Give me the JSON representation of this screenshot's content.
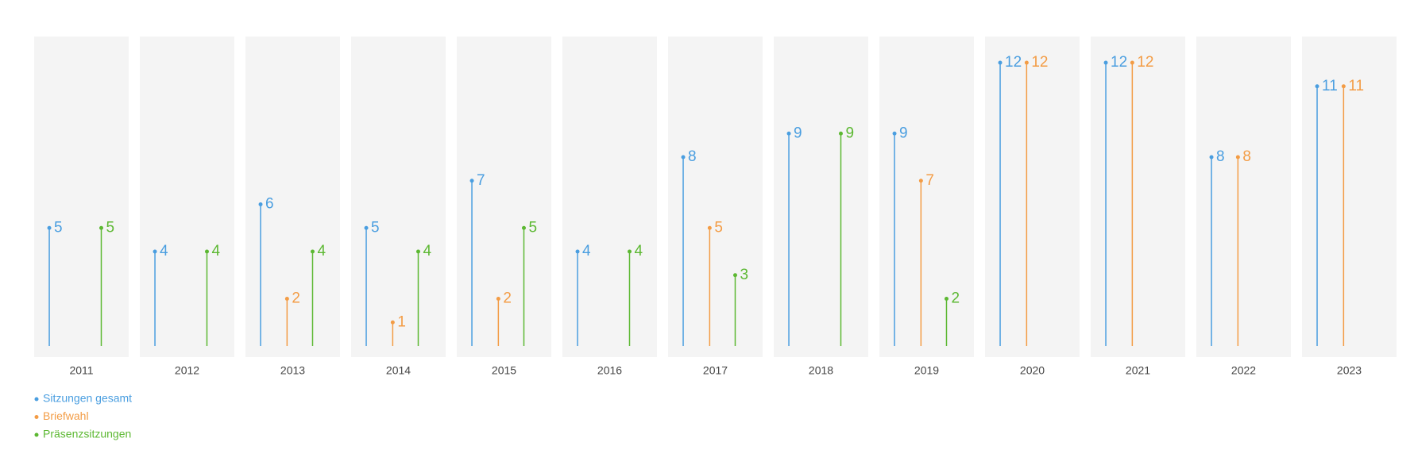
{
  "chart_data": {
    "type": "lollipop",
    "categories": [
      "2011",
      "2012",
      "2013",
      "2014",
      "2015",
      "2016",
      "2017",
      "2018",
      "2019",
      "2020",
      "2021",
      "2022",
      "2023"
    ],
    "series": [
      {
        "name": "Sitzungen gesamt",
        "color": "#4a9ee0",
        "values": [
          5,
          4,
          6,
          5,
          7,
          4,
          8,
          9,
          9,
          12,
          12,
          8,
          11
        ]
      },
      {
        "name": "Briefwahl",
        "color": "#f39c45",
        "values": [
          null,
          null,
          2,
          1,
          2,
          null,
          5,
          null,
          7,
          12,
          12,
          8,
          11
        ]
      },
      {
        "name": "Präsenzsitzungen",
        "color": "#5cb832",
        "values": [
          5,
          4,
          4,
          4,
          5,
          4,
          3,
          9,
          2,
          null,
          null,
          null,
          null
        ]
      }
    ],
    "ylim": [
      0,
      12
    ]
  }
}
